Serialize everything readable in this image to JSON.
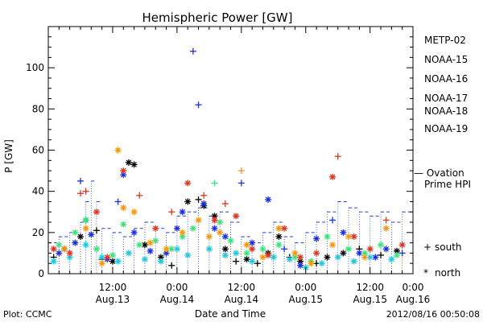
{
  "chart_data": {
    "type": "scatter",
    "title": "Hemispheric Power [GW]",
    "ylabel": "P [GW]",
    "xlabel": "Date and Time",
    "ylim": [
      0,
      120
    ],
    "yticks": [
      0,
      20,
      40,
      60,
      80,
      100
    ],
    "xlim_hours": [
      0,
      68
    ],
    "xtick_hours": [
      12,
      24,
      36,
      48,
      60,
      72
    ],
    "xticks": [
      {
        "time": "12:00",
        "date": "Aug.13"
      },
      {
        "time": "0:00",
        "date": "Aug.14"
      },
      {
        "time": "12:00",
        "date": "Aug.14"
      },
      {
        "time": "0:00",
        "date": "Aug.15"
      },
      {
        "time": "12:00",
        "date": "Aug.15"
      },
      {
        "time": "0:00",
        "date": "Aug.16"
      }
    ],
    "legend_placement": "right",
    "series": [
      {
        "name": "METP-02",
        "color": "#000000",
        "points": [
          {
            "h": 1,
            "v": 8,
            "m": "+"
          },
          {
            "h": 3,
            "v": 12,
            "m": "*"
          },
          {
            "h": 6,
            "v": 18,
            "m": "*"
          },
          {
            "h": 7,
            "v": 26,
            "m": "*"
          },
          {
            "h": 9,
            "v": 21,
            "m": "+"
          },
          {
            "h": 10,
            "v": 7,
            "m": "+"
          },
          {
            "h": 12,
            "v": 6,
            "m": "*"
          },
          {
            "h": 15,
            "v": 54,
            "m": "*"
          },
          {
            "h": 16,
            "v": 53,
            "m": "*"
          },
          {
            "h": 18,
            "v": 14,
            "m": "*"
          },
          {
            "h": 21,
            "v": 8,
            "m": "*"
          },
          {
            "h": 23,
            "v": 4,
            "m": "+"
          },
          {
            "h": 26,
            "v": 35,
            "m": "*"
          },
          {
            "h": 28,
            "v": 36,
            "m": "+"
          },
          {
            "h": 29,
            "v": 33,
            "m": "*"
          },
          {
            "h": 31,
            "v": 28,
            "m": "*"
          },
          {
            "h": 33,
            "v": 12,
            "m": "*"
          },
          {
            "h": 35,
            "v": 6,
            "m": "+"
          },
          {
            "h": 37,
            "v": 7,
            "m": "*"
          },
          {
            "h": 39,
            "v": 5,
            "m": "+"
          },
          {
            "h": 41,
            "v": 10,
            "m": "*"
          },
          {
            "h": 43,
            "v": 18,
            "m": "*"
          },
          {
            "h": 45,
            "v": 8,
            "m": "+"
          },
          {
            "h": 47,
            "v": 6,
            "m": "*"
          },
          {
            "h": 50,
            "v": 5,
            "m": "+"
          },
          {
            "h": 52,
            "v": 8,
            "m": "*"
          },
          {
            "h": 55,
            "v": 10,
            "m": "*"
          },
          {
            "h": 58,
            "v": 12,
            "m": "+"
          },
          {
            "h": 62,
            "v": 9,
            "m": "+"
          },
          {
            "h": 65,
            "v": 11,
            "m": "*"
          }
        ]
      },
      {
        "name": "NOAA-15",
        "color": "#1a2ee0",
        "points": [
          {
            "h": 2,
            "v": 10,
            "m": "*"
          },
          {
            "h": 5,
            "v": 15,
            "m": "*"
          },
          {
            "h": 6,
            "v": 45,
            "m": "+"
          },
          {
            "h": 8,
            "v": 19,
            "m": "*"
          },
          {
            "h": 11,
            "v": 7,
            "m": "*"
          },
          {
            "h": 13,
            "v": 35,
            "m": "+"
          },
          {
            "h": 14,
            "v": 48,
            "m": "*"
          },
          {
            "h": 16,
            "v": 20,
            "m": "*"
          },
          {
            "h": 19,
            "v": 11,
            "m": "*"
          },
          {
            "h": 22,
            "v": 10,
            "m": "*"
          },
          {
            "h": 24,
            "v": 22,
            "m": "*"
          },
          {
            "h": 25,
            "v": 30,
            "m": "*"
          },
          {
            "h": 27,
            "v": 108,
            "m": "+"
          },
          {
            "h": 28,
            "v": 82,
            "m": "+"
          },
          {
            "h": 29,
            "v": 34,
            "m": "*"
          },
          {
            "h": 31,
            "v": 22,
            "m": "*"
          },
          {
            "h": 33,
            "v": 18,
            "m": "*"
          },
          {
            "h": 36,
            "v": 44,
            "m": "+"
          },
          {
            "h": 38,
            "v": 15,
            "m": "*"
          },
          {
            "h": 41,
            "v": 36,
            "m": "*"
          },
          {
            "h": 44,
            "v": 12,
            "m": "+"
          },
          {
            "h": 47,
            "v": 4,
            "m": "*"
          },
          {
            "h": 50,
            "v": 17,
            "m": "*"
          },
          {
            "h": 53,
            "v": 26,
            "m": "+"
          },
          {
            "h": 55,
            "v": 20,
            "m": "*"
          },
          {
            "h": 58,
            "v": 10,
            "m": "*"
          },
          {
            "h": 61,
            "v": 8,
            "m": "*"
          },
          {
            "h": 63,
            "v": 12,
            "m": "*"
          },
          {
            "h": 66,
            "v": 10,
            "m": "+"
          }
        ]
      },
      {
        "name": "NOAA-16",
        "color": "#19c8e0",
        "points": [
          {
            "h": 1,
            "v": 6,
            "m": "*"
          },
          {
            "h": 4,
            "v": 8,
            "m": "*"
          },
          {
            "h": 7,
            "v": 14,
            "m": "*"
          },
          {
            "h": 10,
            "v": 8,
            "m": "*"
          },
          {
            "h": 13,
            "v": 6,
            "m": "*"
          },
          {
            "h": 15,
            "v": 10,
            "m": "*"
          },
          {
            "h": 18,
            "v": 7,
            "m": "*"
          },
          {
            "h": 21,
            "v": 6,
            "m": "*"
          },
          {
            "h": 24,
            "v": 12,
            "m": "*"
          },
          {
            "h": 26,
            "v": 9,
            "m": "*"
          },
          {
            "h": 30,
            "v": 12,
            "m": "*"
          },
          {
            "h": 33,
            "v": 9,
            "m": "*"
          },
          {
            "h": 35,
            "v": 10,
            "m": "*"
          },
          {
            "h": 38,
            "v": 6,
            "m": "*"
          },
          {
            "h": 42,
            "v": 8,
            "m": "*"
          },
          {
            "h": 45,
            "v": 7,
            "m": "*"
          },
          {
            "h": 48,
            "v": 3,
            "m": "*"
          },
          {
            "h": 51,
            "v": 5,
            "m": "*"
          },
          {
            "h": 54,
            "v": 8,
            "m": "*"
          },
          {
            "h": 57,
            "v": 6,
            "m": "*"
          },
          {
            "h": 60,
            "v": 8,
            "m": "*"
          },
          {
            "h": 64,
            "v": 7,
            "m": "*"
          }
        ]
      },
      {
        "name": "NOAA-17",
        "color": "#3ce07a",
        "points": [
          {
            "h": 2,
            "v": 14,
            "m": "*"
          },
          {
            "h": 5,
            "v": 20,
            "m": "*"
          },
          {
            "h": 7,
            "v": 26,
            "m": "*"
          },
          {
            "h": 9,
            "v": 12,
            "m": "*"
          },
          {
            "h": 12,
            "v": 9,
            "m": "*"
          },
          {
            "h": 14,
            "v": 24,
            "m": "*"
          },
          {
            "h": 17,
            "v": 14,
            "m": "*"
          },
          {
            "h": 20,
            "v": 16,
            "m": "*"
          },
          {
            "h": 23,
            "v": 12,
            "m": "*"
          },
          {
            "h": 25,
            "v": 18,
            "m": "*"
          },
          {
            "h": 27,
            "v": 22,
            "m": "*"
          },
          {
            "h": 31,
            "v": 44,
            "m": "+"
          },
          {
            "h": 32,
            "v": 25,
            "m": "*"
          },
          {
            "h": 34,
            "v": 16,
            "m": "*"
          },
          {
            "h": 37,
            "v": 10,
            "m": "*"
          },
          {
            "h": 40,
            "v": 12,
            "m": "*"
          },
          {
            "h": 43,
            "v": 14,
            "m": "*"
          },
          {
            "h": 46,
            "v": 8,
            "m": "*"
          },
          {
            "h": 49,
            "v": 6,
            "m": "*"
          },
          {
            "h": 52,
            "v": 18,
            "m": "*"
          },
          {
            "h": 56,
            "v": 12,
            "m": "*"
          },
          {
            "h": 59,
            "v": 10,
            "m": "*"
          },
          {
            "h": 62,
            "v": 14,
            "m": "*"
          },
          {
            "h": 65,
            "v": 9,
            "m": "*"
          }
        ]
      },
      {
        "name": "NOAA-18",
        "color": "#f5960f",
        "points": [
          {
            "h": 3,
            "v": 12,
            "m": "*"
          },
          {
            "h": 7,
            "v": 22,
            "m": "*"
          },
          {
            "h": 10,
            "v": 5,
            "m": "*"
          },
          {
            "h": 13,
            "v": 60,
            "m": "*"
          },
          {
            "h": 14,
            "v": 32,
            "m": "*"
          },
          {
            "h": 16,
            "v": 30,
            "m": "*"
          },
          {
            "h": 19,
            "v": 15,
            "m": "*"
          },
          {
            "h": 22,
            "v": 12,
            "m": "*"
          },
          {
            "h": 25,
            "v": 20,
            "m": "*"
          },
          {
            "h": 28,
            "v": 26,
            "m": "*"
          },
          {
            "h": 30,
            "v": 18,
            "m": "*"
          },
          {
            "h": 32,
            "v": 20,
            "m": "*"
          },
          {
            "h": 36,
            "v": 50,
            "m": "+"
          },
          {
            "h": 37,
            "v": 14,
            "m": "*"
          },
          {
            "h": 40,
            "v": 8,
            "m": "*"
          },
          {
            "h": 43,
            "v": 22,
            "m": "*"
          },
          {
            "h": 46,
            "v": 10,
            "m": "*"
          },
          {
            "h": 49,
            "v": 5,
            "m": "*"
          },
          {
            "h": 53,
            "v": 14,
            "m": "*"
          },
          {
            "h": 56,
            "v": 18,
            "m": "*"
          },
          {
            "h": 59,
            "v": 8,
            "m": "*"
          },
          {
            "h": 63,
            "v": 22,
            "m": "*"
          }
        ]
      },
      {
        "name": "NOAA-19",
        "color": "#e0321e",
        "points": [
          {
            "h": 1,
            "v": 12,
            "m": "*"
          },
          {
            "h": 4,
            "v": 10,
            "m": "*"
          },
          {
            "h": 6,
            "v": 39,
            "m": "+"
          },
          {
            "h": 7,
            "v": 40,
            "m": "+"
          },
          {
            "h": 9,
            "v": 30,
            "m": "*"
          },
          {
            "h": 11,
            "v": 8,
            "m": "*"
          },
          {
            "h": 14,
            "v": 50,
            "m": "*"
          },
          {
            "h": 17,
            "v": 38,
            "m": "+"
          },
          {
            "h": 20,
            "v": 22,
            "m": "*"
          },
          {
            "h": 23,
            "v": 30,
            "m": "+"
          },
          {
            "h": 26,
            "v": 44,
            "m": "*"
          },
          {
            "h": 29,
            "v": 38,
            "m": "+"
          },
          {
            "h": 31,
            "v": 26,
            "m": "*"
          },
          {
            "h": 33,
            "v": 34,
            "m": "+"
          },
          {
            "h": 35,
            "v": 28,
            "m": "*"
          },
          {
            "h": 38,
            "v": 12,
            "m": "*"
          },
          {
            "h": 41,
            "v": 9,
            "m": "*"
          },
          {
            "h": 44,
            "v": 22,
            "m": "*"
          },
          {
            "h": 47,
            "v": 8,
            "m": "*"
          },
          {
            "h": 50,
            "v": 10,
            "m": "*"
          },
          {
            "h": 53,
            "v": 47,
            "m": "*"
          },
          {
            "h": 54,
            "v": 57,
            "m": "+"
          },
          {
            "h": 57,
            "v": 18,
            "m": "*"
          },
          {
            "h": 60,
            "v": 12,
            "m": "*"
          },
          {
            "h": 63,
            "v": 26,
            "m": "+"
          },
          {
            "h": 66,
            "v": 14,
            "m": "*"
          }
        ]
      }
    ],
    "model_series": {
      "name": "Ovation Prime HPI",
      "label_line1": "— Ovation",
      "label_line2": "Prime HPI",
      "color": "#2340c8",
      "style": "dashed-step",
      "points": [
        {
          "h": 0,
          "v": 15
        },
        {
          "h": 2,
          "v": 18
        },
        {
          "h": 4,
          "v": 20
        },
        {
          "h": 6,
          "v": 25
        },
        {
          "h": 7,
          "v": 35
        },
        {
          "h": 8,
          "v": 45
        },
        {
          "h": 9,
          "v": 35
        },
        {
          "h": 10,
          "v": 22
        },
        {
          "h": 12,
          "v": 20
        },
        {
          "h": 14,
          "v": 18
        },
        {
          "h": 16,
          "v": 22
        },
        {
          "h": 18,
          "v": 25
        },
        {
          "h": 20,
          "v": 22
        },
        {
          "h": 22,
          "v": 20
        },
        {
          "h": 24,
          "v": 28
        },
        {
          "h": 26,
          "v": 30
        },
        {
          "h": 28,
          "v": 32
        },
        {
          "h": 30,
          "v": 28
        },
        {
          "h": 32,
          "v": 30
        },
        {
          "h": 34,
          "v": 25
        },
        {
          "h": 36,
          "v": 18
        },
        {
          "h": 38,
          "v": 15
        },
        {
          "h": 40,
          "v": 20
        },
        {
          "h": 42,
          "v": 25
        },
        {
          "h": 44,
          "v": 18
        },
        {
          "h": 46,
          "v": 15
        },
        {
          "h": 48,
          "v": 20
        },
        {
          "h": 50,
          "v": 25
        },
        {
          "h": 52,
          "v": 30
        },
        {
          "h": 54,
          "v": 35
        },
        {
          "h": 56,
          "v": 32
        },
        {
          "h": 58,
          "v": 30
        },
        {
          "h": 60,
          "v": 28
        },
        {
          "h": 62,
          "v": 30
        },
        {
          "h": 64,
          "v": 25
        },
        {
          "h": 66,
          "v": 30
        },
        {
          "h": 68,
          "v": 35
        }
      ]
    },
    "marker_key": [
      {
        "symbol": "+",
        "label": "south"
      },
      {
        "symbol": "*",
        "label": "north"
      }
    ]
  },
  "footer": {
    "plot_label": "Plot: CCMC",
    "timestamp": "2012/08/16 00:50:08"
  }
}
